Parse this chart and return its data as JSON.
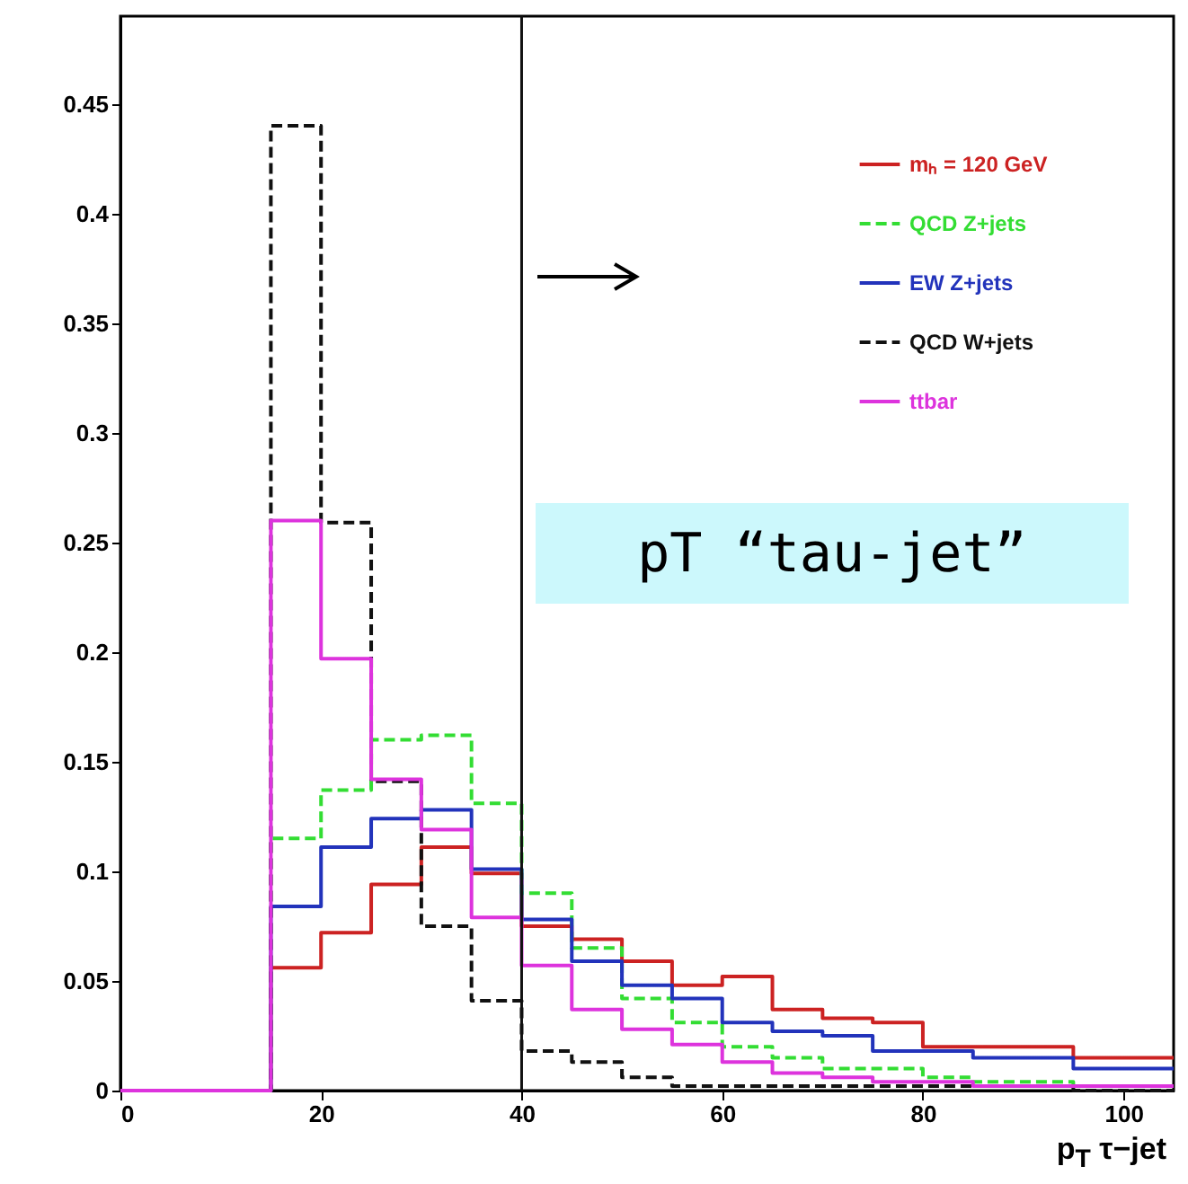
{
  "chart_data": {
    "type": "histogram",
    "xlabel": "p$_{T}$ τ−jet",
    "bins": [
      0,
      5,
      10,
      15,
      20,
      25,
      30,
      35,
      40,
      45,
      50,
      55,
      60,
      65,
      70,
      75,
      80,
      85,
      90,
      95,
      100,
      105
    ],
    "xlim": [
      0,
      105
    ],
    "xticks": [
      0,
      20,
      40,
      60,
      80,
      100
    ],
    "ylim": [
      0,
      0.49
    ],
    "yticks": [
      0,
      0.05,
      0.1,
      0.15,
      0.2,
      0.25,
      0.3,
      0.35,
      0.4,
      0.45
    ],
    "legend": "top right",
    "series": [
      {
        "name": "mₕ = 120 GeV",
        "color": "#cc2222",
        "line_style": "solid",
        "values": [
          0,
          0,
          0,
          0.056,
          0.072,
          0.094,
          0.111,
          0.099,
          0.075,
          0.069,
          0.059,
          0.048,
          0.052,
          0.037,
          0.033,
          0.031,
          0.02,
          0.02,
          0.02,
          0.015,
          0.015
        ]
      },
      {
        "name": "QCD Z+jets",
        "color": "#33dd33",
        "line_style": "dashed",
        "values": [
          0,
          0,
          0,
          0.115,
          0.137,
          0.16,
          0.162,
          0.131,
          0.09,
          0.065,
          0.042,
          0.031,
          0.02,
          0.015,
          0.01,
          0.01,
          0.006,
          0.004,
          0.004,
          0.002,
          0.002
        ]
      },
      {
        "name": "EW Z+jets",
        "color": "#2233bb",
        "line_style": "solid",
        "values": [
          0,
          0,
          0,
          0.084,
          0.111,
          0.124,
          0.128,
          0.101,
          0.078,
          0.059,
          0.048,
          0.042,
          0.031,
          0.027,
          0.025,
          0.018,
          0.018,
          0.015,
          0.015,
          0.01,
          0.01
        ]
      },
      {
        "name": "QCD W+jets",
        "color": "#111111",
        "line_style": "dashed",
        "values": [
          0,
          0,
          0,
          0.44,
          0.259,
          0.141,
          0.075,
          0.041,
          0.018,
          0.013,
          0.006,
          0.002,
          0.002,
          0.002,
          0.002,
          0.002,
          0.002,
          0.002,
          0.002,
          0,
          0
        ]
      },
      {
        "name": "ttbar",
        "color": "#dd33dd",
        "line_style": "solid",
        "values": [
          0,
          0,
          0,
          0.26,
          0.197,
          0.142,
          0.119,
          0.079,
          0.057,
          0.037,
          0.028,
          0.021,
          0.013,
          0.008,
          0.006,
          0.004,
          0.004,
          0.002,
          0.002,
          0.002,
          0.002
        ]
      }
    ],
    "ref_lines": [
      {
        "axis": "x",
        "value": 40,
        "color": "#111111"
      }
    ],
    "annotations": [
      "pT “tau-jet”"
    ]
  }
}
